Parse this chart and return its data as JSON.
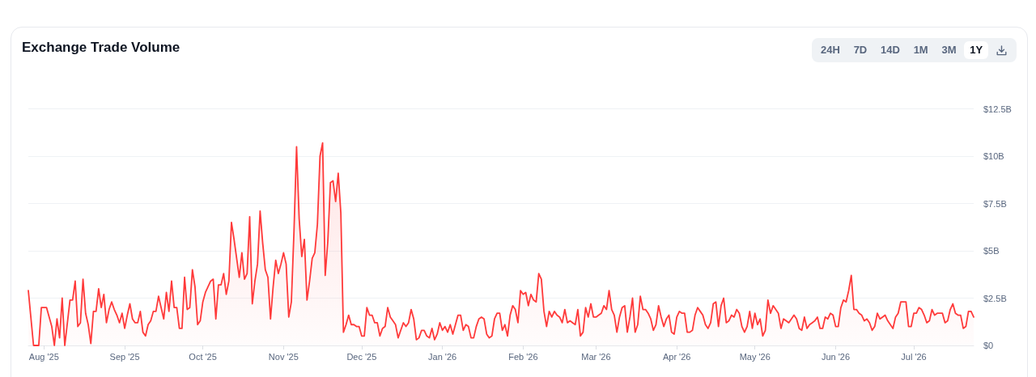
{
  "chart_data": {
    "type": "area",
    "title": "Exchange Trade Volume",
    "annotations": [
      "24H",
      "7D",
      "14D",
      "1M",
      "3M",
      "1Y"
    ],
    "color": "#ff3a3a",
    "marker": "none",
    "grid": "y",
    "xlim": [
      "2025-07-26",
      "2026-07-24"
    ],
    "xticks": [
      {
        "value": "2025-08-01",
        "label": "Aug '25"
      },
      {
        "value": "2025-09-01",
        "label": "Sep '25"
      },
      {
        "value": "2025-10-01",
        "label": "Oct '25"
      },
      {
        "value": "2025-11-01",
        "label": "Nov '25"
      },
      {
        "value": "2025-12-01",
        "label": "Dec '25"
      },
      {
        "value": "2026-01-01",
        "label": "Jan '26"
      },
      {
        "value": "2026-02-01",
        "label": "Feb '26"
      },
      {
        "value": "2026-03-01",
        "label": "Mar '26"
      },
      {
        "value": "2026-04-01",
        "label": "Apr '26"
      },
      {
        "value": "2026-05-01",
        "label": "May '26"
      },
      {
        "value": "2026-06-01",
        "label": "Jun '26"
      },
      {
        "value": "2026-07-01",
        "label": "Jul '26"
      }
    ],
    "ylim": [
      0,
      12.5
    ],
    "yticks": [
      {
        "value": 0,
        "label": "$0"
      },
      {
        "value": 2.5,
        "label": "$2.5B"
      },
      {
        "value": 5,
        "label": "$5B"
      },
      {
        "value": 7.5,
        "label": "$7.5B"
      },
      {
        "value": 10,
        "label": "$10B"
      },
      {
        "value": 12.5,
        "label": "$12.5B"
      }
    ],
    "x": [
      "2025-07-26",
      "2025-07-28",
      "2025-07-29",
      "2025-07-30",
      "2025-07-31",
      "2025-08-01",
      "2025-08-02",
      "2025-08-04",
      "2025-08-05",
      "2025-08-06",
      "2025-08-07",
      "2025-08-08",
      "2025-08-09",
      "2025-08-11",
      "2025-08-12",
      "2025-08-13",
      "2025-08-14",
      "2025-08-15",
      "2025-08-16",
      "2025-08-17",
      "2025-08-18",
      "2025-08-19",
      "2025-08-20",
      "2025-08-21",
      "2025-08-22",
      "2025-08-23",
      "2025-08-24",
      "2025-08-25",
      "2025-08-26",
      "2025-08-27",
      "2025-08-28",
      "2025-08-29",
      "2025-08-30",
      "2025-08-31",
      "2025-09-01",
      "2025-09-02",
      "2025-09-03",
      "2025-09-04",
      "2025-09-05",
      "2025-09-06",
      "2025-09-07",
      "2025-09-08",
      "2025-09-09",
      "2025-09-10",
      "2025-09-11",
      "2025-09-12",
      "2025-09-13",
      "2025-09-14",
      "2025-09-15",
      "2025-09-16",
      "2025-09-17",
      "2025-09-18",
      "2025-09-19",
      "2025-09-20",
      "2025-09-21",
      "2025-09-22",
      "2025-09-23",
      "2025-09-24",
      "2025-09-25",
      "2025-09-26",
      "2025-09-27",
      "2025-09-28",
      "2025-09-29",
      "2025-09-30",
      "2025-10-01",
      "2025-10-02",
      "2025-10-03",
      "2025-10-04",
      "2025-10-05",
      "2025-10-06",
      "2025-10-07",
      "2025-10-08",
      "2025-10-09",
      "2025-10-10",
      "2025-10-11",
      "2025-10-12",
      "2025-10-13",
      "2025-10-14",
      "2025-10-15",
      "2025-10-16",
      "2025-10-17",
      "2025-10-18",
      "2025-10-19",
      "2025-10-20",
      "2025-10-21",
      "2025-10-22",
      "2025-10-23",
      "2025-10-24",
      "2025-10-25",
      "2025-10-26",
      "2025-10-27",
      "2025-10-28",
      "2025-10-29",
      "2025-10-30",
      "2025-10-31",
      "2025-11-01",
      "2025-11-02",
      "2025-11-03",
      "2025-11-04",
      "2025-11-05",
      "2025-11-06",
      "2025-11-07",
      "2025-11-08",
      "2025-11-09",
      "2025-11-10",
      "2025-11-11",
      "2025-11-12",
      "2025-11-13",
      "2025-11-14",
      "2025-11-15",
      "2025-11-16",
      "2025-11-17",
      "2025-11-18",
      "2025-11-19",
      "2025-11-20",
      "2025-11-21",
      "2025-11-22",
      "2025-11-23",
      "2025-11-24",
      "2025-11-25",
      "2025-11-26",
      "2025-11-27",
      "2025-11-28",
      "2025-11-29",
      "2025-11-30",
      "2025-12-01",
      "2025-12-02",
      "2025-12-03",
      "2025-12-04",
      "2025-12-05",
      "2025-12-06",
      "2025-12-07",
      "2025-12-08",
      "2025-12-09",
      "2025-12-10",
      "2025-12-11",
      "2025-12-12",
      "2025-12-13",
      "2025-12-14",
      "2025-12-15",
      "2025-12-16",
      "2025-12-17",
      "2025-12-18",
      "2025-12-19",
      "2025-12-20",
      "2025-12-21",
      "2025-12-22",
      "2025-12-23",
      "2025-12-24",
      "2025-12-25",
      "2025-12-26",
      "2025-12-27",
      "2025-12-28",
      "2025-12-29",
      "2025-12-30",
      "2025-12-31",
      "2026-01-01",
      "2026-01-02",
      "2026-01-03",
      "2026-01-04",
      "2026-01-05",
      "2026-01-06",
      "2026-01-07",
      "2026-01-08",
      "2026-01-09",
      "2026-01-10",
      "2026-01-11",
      "2026-01-12",
      "2026-01-13",
      "2026-01-14",
      "2026-01-15",
      "2026-01-16",
      "2026-01-17",
      "2026-01-18",
      "2026-01-19",
      "2026-01-20",
      "2026-01-21",
      "2026-01-22",
      "2026-01-23",
      "2026-01-24",
      "2026-01-25",
      "2026-01-26",
      "2026-01-27",
      "2026-01-28",
      "2026-01-29",
      "2026-01-30",
      "2026-01-31",
      "2026-02-01",
      "2026-02-02",
      "2026-02-03",
      "2026-02-04",
      "2026-02-05",
      "2026-02-06",
      "2026-02-07",
      "2026-02-08",
      "2026-02-09",
      "2026-02-10",
      "2026-02-11",
      "2026-02-12",
      "2026-02-13",
      "2026-02-14",
      "2026-02-15",
      "2026-02-16",
      "2026-02-17",
      "2026-02-18",
      "2026-02-19",
      "2026-02-20",
      "2026-02-21",
      "2026-02-22",
      "2026-02-23",
      "2026-02-24",
      "2026-02-25",
      "2026-02-26",
      "2026-02-27",
      "2026-02-28",
      "2026-03-01",
      "2026-03-02",
      "2026-03-03",
      "2026-03-04",
      "2026-03-05",
      "2026-03-06",
      "2026-03-07",
      "2026-03-08",
      "2026-03-09",
      "2026-03-10",
      "2026-03-11",
      "2026-03-12",
      "2026-03-13",
      "2026-03-14",
      "2026-03-15",
      "2026-03-16",
      "2026-03-17",
      "2026-03-18",
      "2026-03-19",
      "2026-03-20",
      "2026-03-21",
      "2026-03-22",
      "2026-03-23",
      "2026-03-24",
      "2026-03-25",
      "2026-03-26",
      "2026-03-27",
      "2026-03-28",
      "2026-03-29",
      "2026-03-30",
      "2026-03-31",
      "2026-04-01",
      "2026-04-02",
      "2026-04-03",
      "2026-04-04",
      "2026-04-05",
      "2026-04-06",
      "2026-04-07",
      "2026-04-08",
      "2026-04-09",
      "2026-04-10",
      "2026-04-11",
      "2026-04-12",
      "2026-04-13",
      "2026-04-14",
      "2026-04-15",
      "2026-04-16",
      "2026-04-17",
      "2026-04-18",
      "2026-04-19",
      "2026-04-20",
      "2026-04-21",
      "2026-04-22",
      "2026-04-23",
      "2026-04-24",
      "2026-04-25",
      "2026-04-26",
      "2026-04-27",
      "2026-04-28",
      "2026-04-29",
      "2026-04-30",
      "2026-05-01",
      "2026-05-02",
      "2026-05-03",
      "2026-05-04",
      "2026-05-05",
      "2026-05-06",
      "2026-05-07",
      "2026-05-08",
      "2026-05-09",
      "2026-05-10",
      "2026-05-11",
      "2026-05-12",
      "2026-05-13",
      "2026-05-14",
      "2026-05-15",
      "2026-05-16",
      "2026-05-17",
      "2026-05-18",
      "2026-05-19",
      "2026-05-20",
      "2026-05-21",
      "2026-05-22",
      "2026-05-23",
      "2026-05-24",
      "2026-05-25",
      "2026-05-26",
      "2026-05-27",
      "2026-05-28",
      "2026-05-29",
      "2026-05-30",
      "2026-05-31",
      "2026-06-01",
      "2026-06-02",
      "2026-06-03",
      "2026-06-04",
      "2026-06-05",
      "2026-06-06",
      "2026-06-07",
      "2026-06-08",
      "2026-06-09",
      "2026-06-10",
      "2026-06-11",
      "2026-06-12",
      "2026-06-13",
      "2026-06-14",
      "2026-06-15",
      "2026-06-16",
      "2026-06-17",
      "2026-06-18",
      "2026-06-19",
      "2026-06-20",
      "2026-06-21",
      "2026-06-22",
      "2026-06-23",
      "2026-06-24",
      "2026-06-25",
      "2026-06-26",
      "2026-06-27",
      "2026-06-28",
      "2026-06-29",
      "2026-06-30",
      "2026-07-01",
      "2026-07-02",
      "2026-07-03",
      "2026-07-04",
      "2026-07-05",
      "2026-07-06",
      "2026-07-07",
      "2026-07-08",
      "2026-07-09",
      "2026-07-10",
      "2026-07-11",
      "2026-07-12",
      "2026-07-13",
      "2026-07-14",
      "2026-07-15",
      "2026-07-16",
      "2026-07-17",
      "2026-07-18",
      "2026-07-19",
      "2026-07-20",
      "2026-07-21",
      "2026-07-22",
      "2026-07-23",
      "2026-07-24"
    ],
    "values": [
      2.9,
      0,
      0,
      0,
      2.0,
      2.0,
      2.0,
      1.0,
      0,
      1.4,
      0.4,
      2.5,
      0,
      2.4,
      2.4,
      3.4,
      1.0,
      1.2,
      3.5,
      1.7,
      1.1,
      0.1,
      1.8,
      1.8,
      3.0,
      2.0,
      2.7,
      1.2,
      1.9,
      2.3,
      1.9,
      1.6,
      1.2,
      1.7,
      0.9,
      1.6,
      2.2,
      1.4,
      1.2,
      1.2,
      1.8,
      0.7,
      0.5,
      1.1,
      1.3,
      1.8,
      1.8,
      2.6,
      2.0,
      1.4,
      2.8,
      1.8,
      3.4,
      2.0,
      2.0,
      0.9,
      0.9,
      3.6,
      1.9,
      2.0,
      4.0,
      3.1,
      1.1,
      1.3,
      2.3,
      2.8,
      3.1,
      3.4,
      3.5,
      1.4,
      3.2,
      3.2,
      3.8,
      2.7,
      3.4,
      6.5,
      5.6,
      4.6,
      3.6,
      4.9,
      3.5,
      3.8,
      6.8,
      2.2,
      3.4,
      4.3,
      7.1,
      5.4,
      4.0,
      3.6,
      1.4,
      3.1,
      4.5,
      3.8,
      4.3,
      4.9,
      4.3,
      1.5,
      2.3,
      6.0,
      10.5,
      6.7,
      4.7,
      5.6,
      2.4,
      3.4,
      4.6,
      4.9,
      6.4,
      10.0,
      10.7,
      3.7,
      5.5,
      8.6,
      8.7,
      7.6,
      9.1,
      7.0,
      0.7,
      1.1,
      1.6,
      1.1,
      1.1,
      1.0,
      1.0,
      0.5,
      0.5,
      2.0,
      1.6,
      1.6,
      1.2,
      1.2,
      0.5,
      0.9,
      1.0,
      2.0,
      1.5,
      1.3,
      1.1,
      0.4,
      0.8,
      1.2,
      1.0,
      1.2,
      1.9,
      1.4,
      0.3,
      0.4,
      0.8,
      0.8,
      0.5,
      0.4,
      0.9,
      0.3,
      0.6,
      1.2,
      0.8,
      1.0,
      0.7,
      1.1,
      0.6,
      1.1,
      1.6,
      1.6,
      0.8,
      1.1,
      1.0,
      0.4,
      0.4,
      1.0,
      1.4,
      1.5,
      1.4,
      0.6,
      0.4,
      0.5,
      1.4,
      1.7,
      1.7,
      0.8,
      1.1,
      0.5,
      1.6,
      2.1,
      1.9,
      1.2,
      2.9,
      2.7,
      2.8,
      2.1,
      2.7,
      2.4,
      2.3,
      3.8,
      3.5,
      1.8,
      1.0,
      1.8,
      1.5,
      1.8,
      1.6,
      1.5,
      1.2,
      1.9,
      1.2,
      1.3,
      1.2,
      1.1,
      1.9,
      0.5,
      0.7,
      2.0,
      1.5,
      2.2,
      1.5,
      1.5,
      1.6,
      1.7,
      2.1,
      1.9,
      2.9,
      1.9,
      1.6,
      0.7,
      1.5,
      2.0,
      2.1,
      0.7,
      1.5,
      2.5,
      0.7,
      1.1,
      2.6,
      1.9,
      1.9,
      1.7,
      1.4,
      0.8,
      1.1,
      2.1,
      1.5,
      1.0,
      1.4,
      1.6,
      0.7,
      0.6,
      1.5,
      1.8,
      1.7,
      1.7,
      0.7,
      0.7,
      0.8,
      1.6,
      2.0,
      1.8,
      1.6,
      1.1,
      0.9,
      1.2,
      2.2,
      2.3,
      1.0,
      2.1,
      2.5,
      1.2,
      1.3,
      1.6,
      1.5,
      1.9,
      1.7,
      1.0,
      0.7,
      1.0,
      1.8,
      0.9,
      1.7,
      1.1,
      1.4,
      0.5,
      0.8,
      2.4,
      1.7,
      2.1,
      1.9,
      1.7,
      0.9,
      1.4,
      1.3,
      1.2,
      1.4,
      1.6,
      1.4,
      0.9,
      0.8,
      1.5,
      0.9,
      1.1,
      1.2,
      1.3,
      1.5,
      0.9,
      0.9,
      1.5,
      1.4,
      1.7,
      1.6,
      1.0,
      1.0,
      2.0,
      2.4,
      2.3,
      2.9,
      3.7,
      1.9,
      1.9,
      1.7,
      1.6,
      1.3,
      1.4,
      1.2,
      0.8,
      1.0,
      1.7,
      1.4,
      1.5,
      1.6,
      1.3,
      1.1,
      0.9,
      1.5,
      1.7,
      2.3,
      2.3,
      2.3,
      1.0,
      1.0,
      1.7,
      1.7,
      2.0,
      1.9,
      1.6,
      1.2,
      1.3,
      1.9,
      1.6,
      1.7,
      1.7,
      1.7,
      1.2,
      1.3,
      1.9,
      2.2,
      1.7,
      1.6,
      1.6,
      0.9,
      1.0,
      1.8,
      1.8,
      1.5
    ]
  }
}
